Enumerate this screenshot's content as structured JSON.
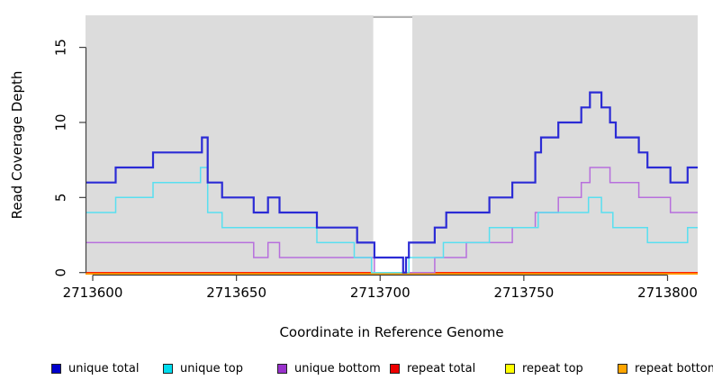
{
  "figure": {
    "x_axis_title": "Coordinate in Reference Genome",
    "y_axis_title": "Read Coverage Depth"
  },
  "legend": {
    "items": [
      {
        "label": "unique total",
        "color": "#0000cc"
      },
      {
        "label": "unique top",
        "color": "#00dcee"
      },
      {
        "label": "unique bottom",
        "color": "#9932cc"
      },
      {
        "label": "repeat total",
        "color": "#ee0000"
      },
      {
        "label": "repeat top",
        "color": "#ffff00"
      },
      {
        "label": "repeat bottom",
        "color": "#ffa500"
      }
    ]
  },
  "chart_data": {
    "type": "line",
    "subtype": "step-coverage",
    "title": "",
    "xlabel": "Coordinate in Reference Genome",
    "ylabel": "Read Coverage Depth",
    "xlim": [
      2713597.5,
      2713810.5
    ],
    "ylim": [
      0,
      17.1
    ],
    "x_ticks": [
      2713600,
      2713650,
      2713700,
      2713750,
      2713800
    ],
    "y_ticks": [
      0,
      5,
      10,
      15
    ],
    "panel_background": "#dcdcdc",
    "grid": false,
    "legend_position": "bottom",
    "masked_region": {
      "x_start": 2713697.6,
      "x_end": 2713711.2,
      "color": "#ffffff"
    },
    "x_end": 2713810.5,
    "series": [
      {
        "name": "unique total",
        "line_color": "#2b2bd5",
        "line_width": 2.2,
        "steps": [
          [
            2713597.5,
            6
          ],
          [
            2713608,
            7
          ],
          [
            2713621,
            8
          ],
          [
            2713638,
            9
          ],
          [
            2713640,
            6
          ],
          [
            2713645,
            5
          ],
          [
            2713656,
            4
          ],
          [
            2713661,
            5
          ],
          [
            2713665,
            4
          ],
          [
            2713678,
            3
          ],
          [
            2713692,
            2
          ],
          [
            2713698,
            1
          ],
          [
            2713708,
            0
          ],
          [
            2713709,
            1
          ],
          [
            2713710,
            2
          ],
          [
            2713719,
            3
          ],
          [
            2713723,
            4
          ],
          [
            2713738,
            5
          ],
          [
            2713746,
            6
          ],
          [
            2713754,
            8
          ],
          [
            2713756,
            9
          ],
          [
            2713762,
            10
          ],
          [
            2713770,
            11
          ],
          [
            2713773,
            12
          ],
          [
            2713777,
            11
          ],
          [
            2713780,
            10
          ],
          [
            2713782,
            9
          ],
          [
            2713790,
            8
          ],
          [
            2713793,
            7
          ],
          [
            2713801,
            6
          ],
          [
            2713807,
            7
          ]
        ]
      },
      {
        "name": "unique top",
        "line_color": "#58dff0",
        "line_width": 1.5,
        "steps": [
          [
            2713597.5,
            4
          ],
          [
            2713608,
            5
          ],
          [
            2713621,
            6
          ],
          [
            2713637.5,
            7
          ],
          [
            2713640,
            4
          ],
          [
            2713645,
            3
          ],
          [
            2713678,
            2
          ],
          [
            2713691,
            1
          ],
          [
            2713697,
            0
          ],
          [
            2713710,
            1
          ],
          [
            2713722,
            2
          ],
          [
            2713738,
            3
          ],
          [
            2713755,
            4
          ],
          [
            2713772.5,
            5
          ],
          [
            2713777,
            4
          ],
          [
            2713781,
            3
          ],
          [
            2713793,
            2
          ],
          [
            2713807,
            3
          ]
        ]
      },
      {
        "name": "unique bottom",
        "line_color": "#b76fdd",
        "line_width": 1.5,
        "steps": [
          [
            2713597.5,
            2
          ],
          [
            2713656,
            1
          ],
          [
            2713661,
            2
          ],
          [
            2713665,
            1
          ],
          [
            2713698,
            0
          ],
          [
            2713719,
            1
          ],
          [
            2713730,
            2
          ],
          [
            2713746,
            3
          ],
          [
            2713754,
            4
          ],
          [
            2713762,
            5
          ],
          [
            2713770,
            6
          ],
          [
            2713773,
            7
          ],
          [
            2713780,
            6
          ],
          [
            2713790,
            5
          ],
          [
            2713801,
            4
          ]
        ]
      },
      {
        "name": "repeat total",
        "line_color": "#ff0000",
        "line_width": 1.2,
        "steps": [
          [
            2713597.5,
            0
          ]
        ]
      },
      {
        "name": "repeat top",
        "line_color": "#ffff00",
        "line_width": 1.2,
        "steps": [
          [
            2713597.5,
            0
          ]
        ]
      },
      {
        "name": "repeat bottom",
        "line_color": "#ffa000",
        "line_width": 2,
        "steps": [
          [
            2713597.5,
            0
          ]
        ]
      }
    ]
  }
}
